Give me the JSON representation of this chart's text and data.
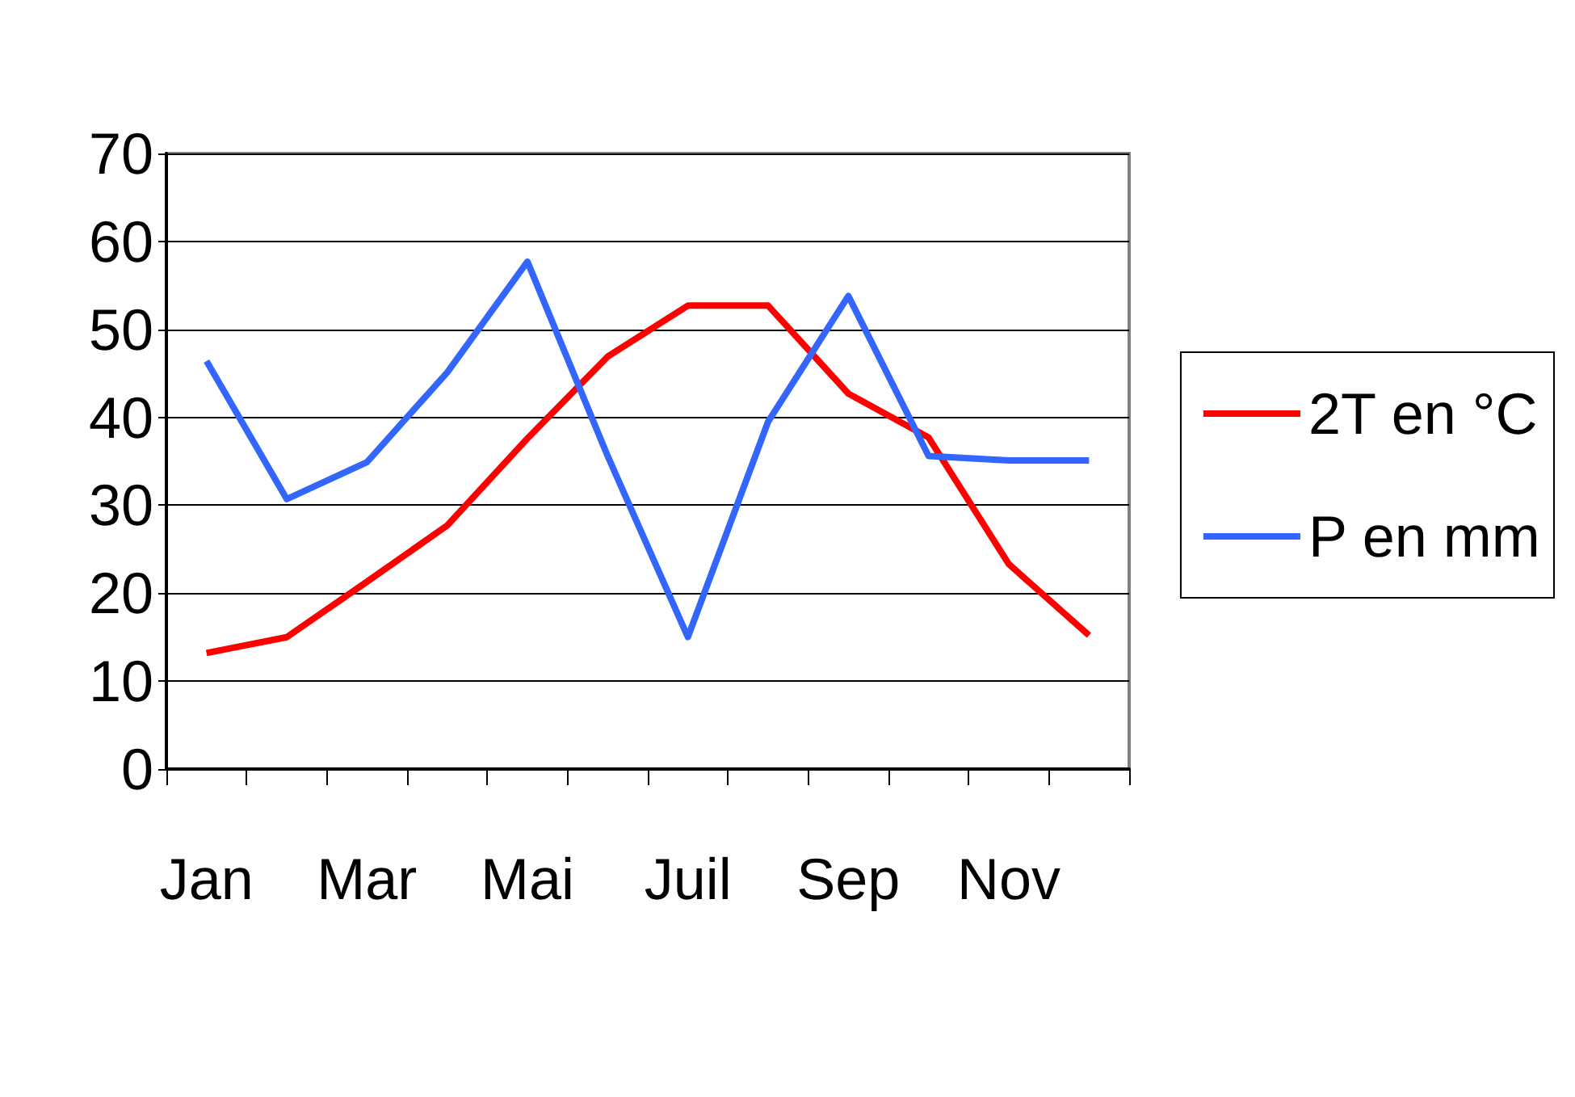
{
  "chart_data": {
    "type": "line",
    "categories": [
      "Jan",
      null,
      "Mar",
      null,
      "Mai",
      null,
      "Juil",
      null,
      "Sep",
      null,
      "Nov",
      null
    ],
    "series": [
      {
        "name": "2T en °C",
        "color": "#ff0000",
        "values": [
          13.2,
          15,
          21.3,
          27.7,
          37.6,
          46.9,
          52.7,
          52.7,
          42.7,
          37.7,
          23.3,
          15.2
        ]
      },
      {
        "name": "P en mm",
        "color": "#3366ff",
        "values": [
          46.4,
          30.7,
          34.9,
          45.1,
          57.7,
          35.6,
          15,
          39.5,
          53.8,
          35.6,
          35.1,
          35.1
        ]
      }
    ],
    "ylim": [
      0,
      70
    ],
    "yticks": [
      0,
      10,
      20,
      30,
      40,
      50,
      60,
      70
    ],
    "grid": "y",
    "legend": "right",
    "marker": "none",
    "line_style": "solid"
  }
}
